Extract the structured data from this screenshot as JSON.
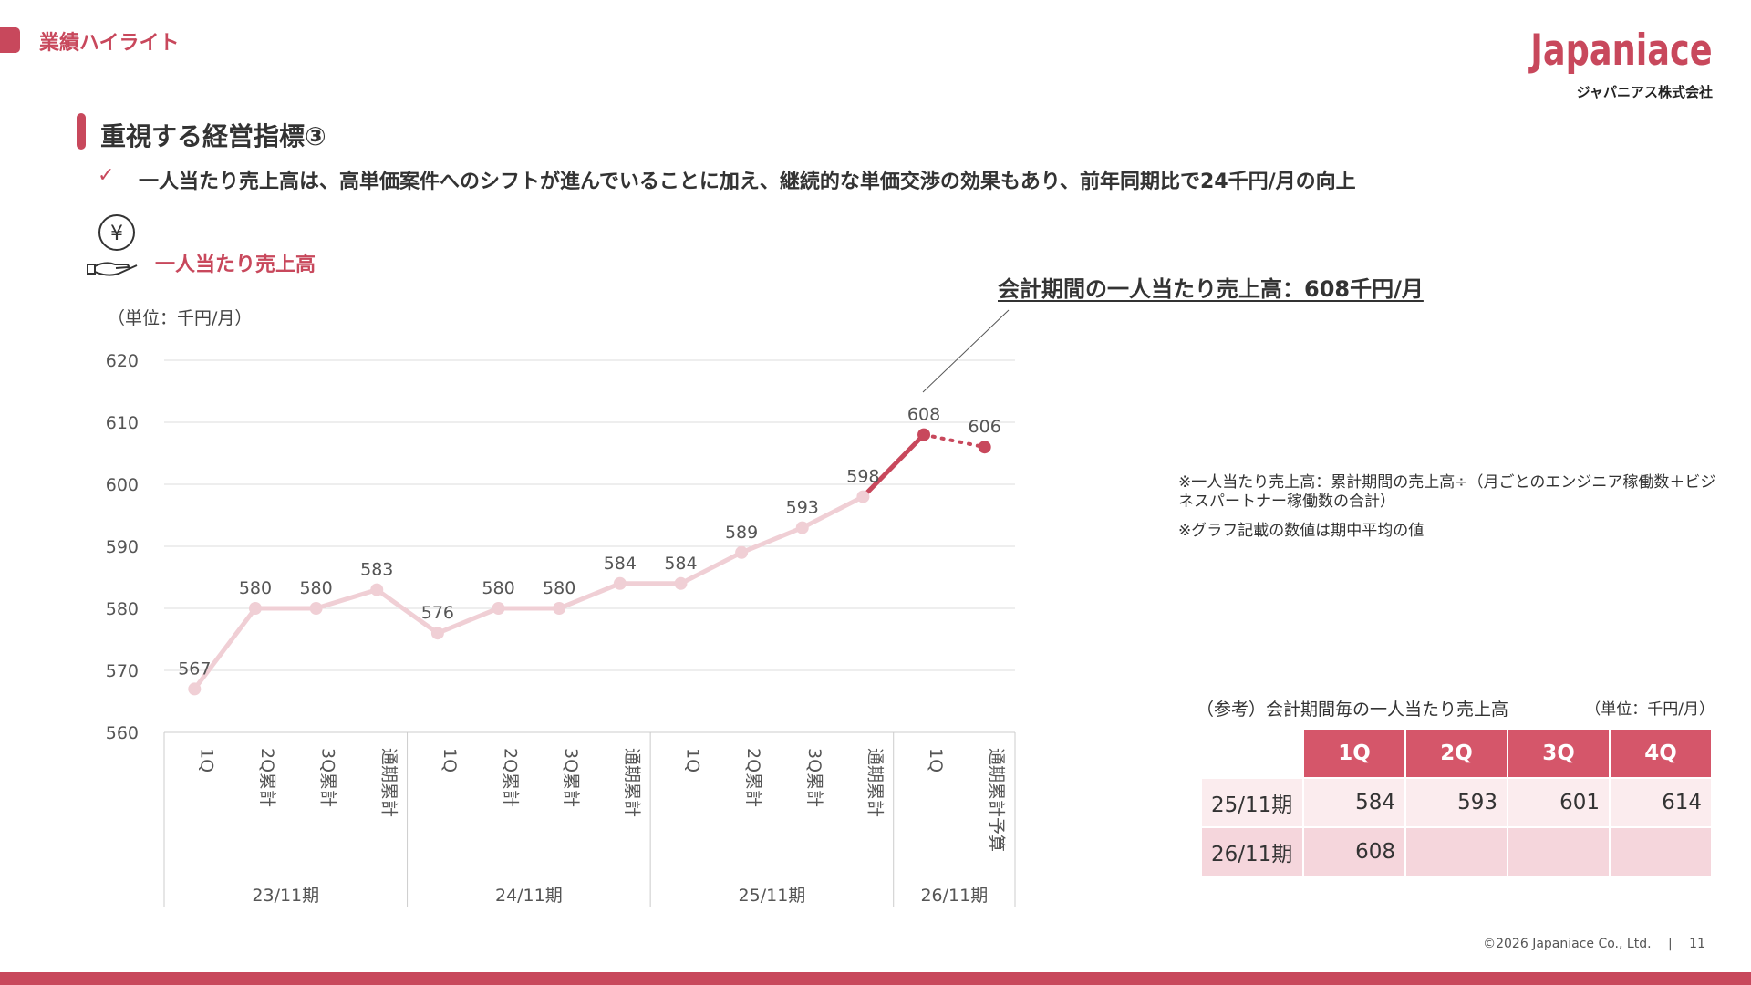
{
  "header": {
    "section_title": "業績ハイライト",
    "logo_word": "Japaniace",
    "logo_sub": "ジャパニアス株式会社"
  },
  "heading": "重視する経営指標③",
  "bullet": {
    "icon": "check-icon",
    "text": "一人当たり売上高は、高単価案件へのシフトが進んでいることに加え、継続的な単価交渉の効果もあり、前年同期比で24千円/月の向上"
  },
  "metric_title": "一人当たり売上高",
  "unit_label": "（単位：千円/月）",
  "callout": "会計期間の一人当たり売上高：608千円/月",
  "notes": [
    "※一人当たり売上高：累計期間の売上高÷（月ごとのエンジニア稼働数＋ビジネスパートナー稼働数の合計）",
    "※グラフ記載の数値は期中平均の値"
  ],
  "colors": {
    "accent": "#c8485c",
    "line_past": "#f0cfd5",
    "line_current": "#c8485c"
  },
  "chart_data": {
    "type": "line",
    "y_ticks": [
      "560",
      "570",
      "580",
      "590",
      "600",
      "610",
      "620"
    ],
    "ylim": [
      560,
      620
    ],
    "grid": true,
    "categories": [
      "1Q",
      "2Q累計",
      "3Q累計",
      "通期累計",
      "1Q",
      "2Q累計",
      "3Q累計",
      "通期累計",
      "1Q",
      "2Q累計",
      "3Q累計",
      "通期累計",
      "1Q",
      "通期累計予算"
    ],
    "groups": [
      {
        "label": "23/11期",
        "count": 4
      },
      {
        "label": "24/11期",
        "count": 4
      },
      {
        "label": "25/11期",
        "count": 4
      },
      {
        "label": "26/11期",
        "count": 2
      }
    ],
    "values": [
      567,
      580,
      580,
      583,
      576,
      580,
      580,
      584,
      584,
      589,
      593,
      598,
      608,
      606
    ],
    "data_labels": [
      "567",
      "580",
      "580",
      "583",
      "576",
      "580",
      "580",
      "584",
      "584",
      "589",
      "593",
      "598",
      "608",
      "606"
    ],
    "segments": [
      {
        "from": 0,
        "to": 11,
        "style": "past"
      },
      {
        "from": 11,
        "to": 12,
        "style": "current"
      },
      {
        "from": 12,
        "to": 13,
        "style": "forecast-dotted"
      }
    ]
  },
  "reference_table": {
    "title": "（参考）会計期間毎の一人当たり売上高",
    "unit": "（単位：千円/月）",
    "columns": [
      "1Q",
      "2Q",
      "3Q",
      "4Q"
    ],
    "rows": [
      {
        "label": "25/11期",
        "values": [
          "584",
          "593",
          "601",
          "614"
        ]
      },
      {
        "label": "26/11期",
        "values": [
          "608",
          "",
          "",
          ""
        ]
      }
    ]
  },
  "footer": {
    "copyright": "©2026 Japaniace Co., Ltd.",
    "separator": "|",
    "page": "11"
  }
}
